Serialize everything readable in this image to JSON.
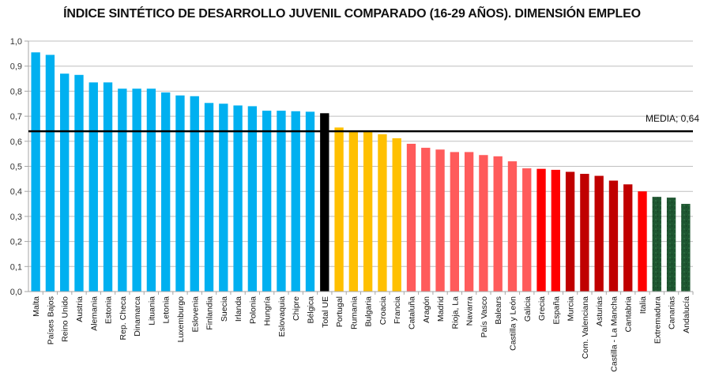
{
  "chart_data": {
    "type": "bar",
    "title": "ÍNDICE SINTÉTICO DE DESARROLLO JUVENIL COMPARADO (16-29 AÑOS). DIMENSIÓN EMPLEO",
    "xlabel": "",
    "ylabel": "",
    "ylim": [
      0,
      1.0
    ],
    "ytick_step": 0.1,
    "ytick_labels": [
      "0,0",
      "0,1",
      "0,2",
      "0,3",
      "0,4",
      "0,5",
      "0,6",
      "0,7",
      "0,8",
      "0,9",
      "1,0"
    ],
    "grid": true,
    "legend": "none",
    "reference_line": {
      "label": "MEDIA; 0,64",
      "value": 0.64,
      "color": "#000000"
    },
    "group_colors": {
      "eu_above": "#00B0F0",
      "total": "#000000",
      "eu_below": "#FFC000",
      "spain_high": "#FF5B5B",
      "spain_mid": "#FF0000",
      "spain_low": "#C00000",
      "spain_lowest": "#1E5631"
    },
    "categories": [
      "Malta",
      "Países Bajos",
      "Reino Unido",
      "Austria",
      "Alemania",
      "Estonia",
      "Rep. Checa",
      "Dinamarca",
      "Lituania",
      "Letonia",
      "Luxemburgo",
      "Eslovenia",
      "Finlandia",
      "Suecia",
      "Irlanda",
      "Polonia",
      "Hungría",
      "Eslovaquia",
      "Chipre",
      "Bélgica",
      "Total UE",
      "Portugal",
      "Rumania",
      "Bulgaria",
      "Croacia",
      "Francia",
      "Cataluña",
      "Aragón",
      "Madrid",
      "Rioja, La",
      "Navarra",
      "País Vasco",
      "Balears",
      "Castilla y León",
      "Galicia",
      "Grecia",
      "España",
      "Murcia",
      "Com. Valenciana",
      "Asturias",
      "Castilla - La Mancha",
      "Cantabria",
      "Italia",
      "Extremadura",
      "Canarias",
      "Andalucía"
    ],
    "values": [
      0.955,
      0.945,
      0.87,
      0.865,
      0.835,
      0.835,
      0.81,
      0.81,
      0.81,
      0.795,
      0.783,
      0.78,
      0.753,
      0.75,
      0.743,
      0.74,
      0.722,
      0.722,
      0.72,
      0.718,
      0.712,
      0.655,
      0.64,
      0.64,
      0.628,
      0.612,
      0.59,
      0.574,
      0.567,
      0.557,
      0.557,
      0.545,
      0.54,
      0.52,
      0.492,
      0.49,
      0.486,
      0.478,
      0.47,
      0.462,
      0.443,
      0.428,
      0.4,
      0.378,
      0.375,
      0.35
    ],
    "groups": [
      "eu_above",
      "eu_above",
      "eu_above",
      "eu_above",
      "eu_above",
      "eu_above",
      "eu_above",
      "eu_above",
      "eu_above",
      "eu_above",
      "eu_above",
      "eu_above",
      "eu_above",
      "eu_above",
      "eu_above",
      "eu_above",
      "eu_above",
      "eu_above",
      "eu_above",
      "eu_above",
      "total",
      "eu_below",
      "eu_below",
      "eu_below",
      "eu_below",
      "eu_below",
      "spain_high",
      "spain_high",
      "spain_high",
      "spain_high",
      "spain_high",
      "spain_high",
      "spain_high",
      "spain_high",
      "spain_high",
      "spain_mid",
      "spain_mid",
      "spain_low",
      "spain_low",
      "spain_low",
      "spain_low",
      "spain_low",
      "spain_mid",
      "spain_lowest",
      "spain_lowest",
      "spain_lowest"
    ]
  }
}
